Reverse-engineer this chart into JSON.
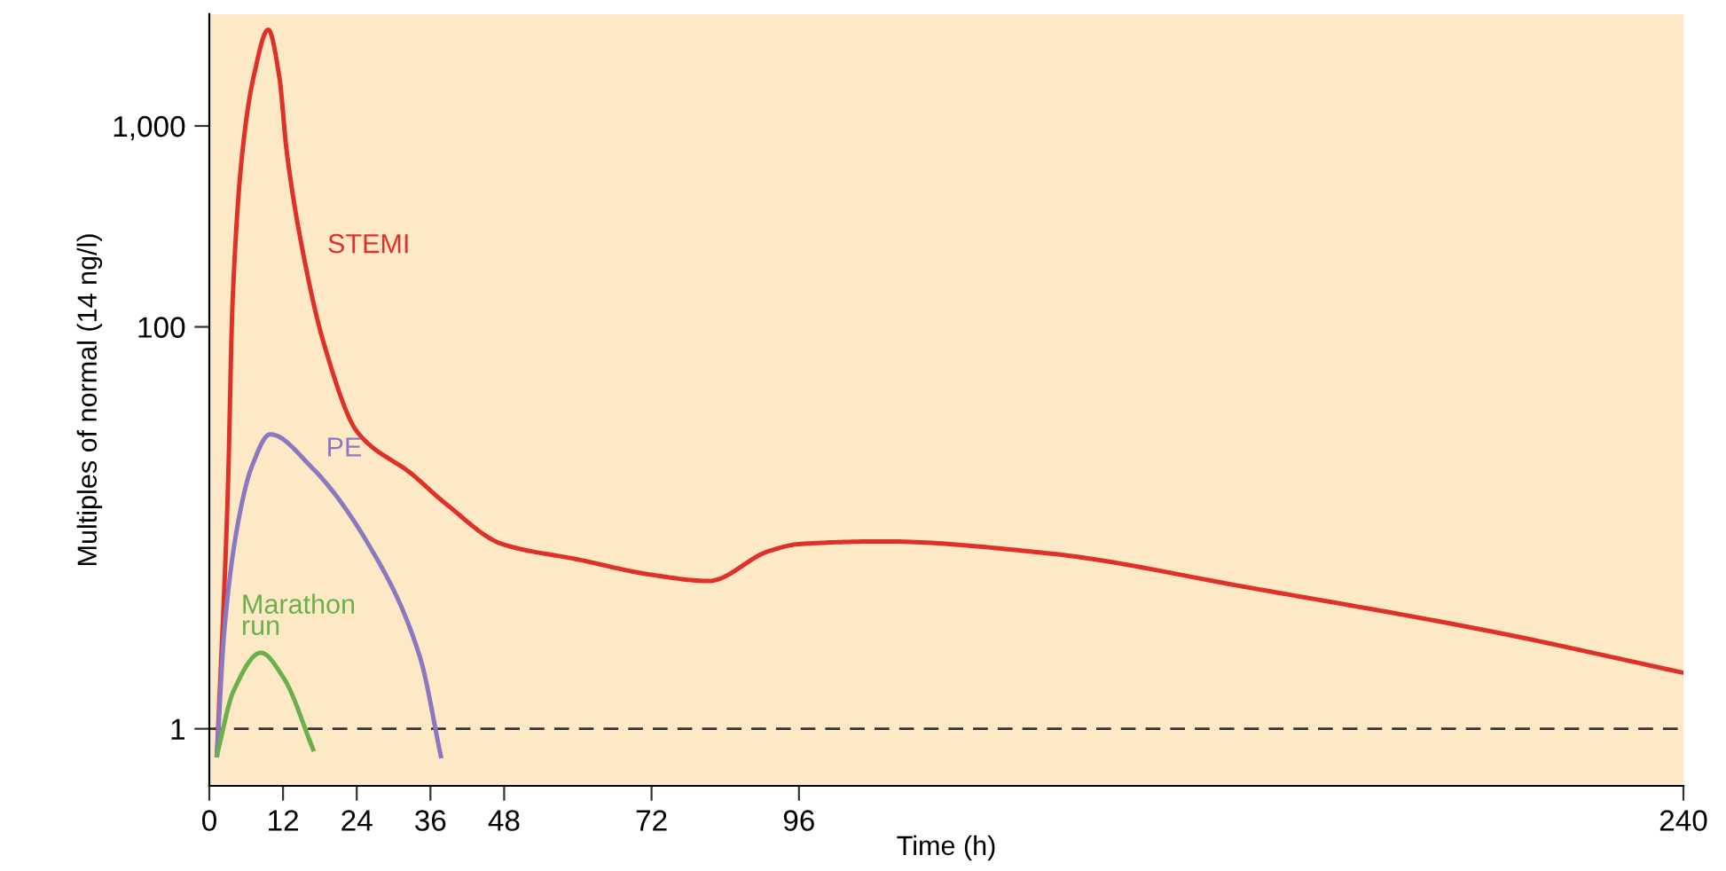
{
  "chart_data": {
    "type": "line",
    "xlabel": "Time (h)",
    "ylabel": "Multiples of normal (14 ng/l)",
    "log": "y",
    "grid": false,
    "legend": false,
    "marker": "none",
    "line_style": "solid",
    "xlim": [
      0,
      240
    ],
    "xticks": [
      0,
      12,
      24,
      36,
      48,
      72,
      96,
      240
    ],
    "ylim": [
      0.52,
      3600
    ],
    "yticks": [
      1,
      100,
      {
        "value": 1000,
        "label": "1,000"
      }
    ],
    "ref_lines": [
      {
        "axis": "y",
        "value": 1,
        "color": "#333333",
        "line_style": "dashed"
      }
    ],
    "series": [
      {
        "name": "STEMI",
        "color": "#e0302a",
        "x": [
          1.25,
          3.0,
          3.8,
          5.4,
          7.2,
          9.6,
          11.4,
          12.6,
          15.2,
          18.7,
          24.2,
          32.9,
          38.6,
          47.7,
          60,
          72,
          81.3,
          91,
          96,
          109.7,
          136,
          169.6,
          209,
          240
        ],
        "values": [
          0.74,
          14.7,
          136,
          748,
          1750,
          3010,
          1750,
          748,
          239,
          81.6,
          29.7,
          18.6,
          13.1,
          8.3,
          6.96,
          5.84,
          5.44,
          7.64,
          8.3,
          8.56,
          7.5,
          5.02,
          3.04,
          1.9
        ]
      },
      {
        "name": "PE",
        "color": "#8a78c0",
        "x": [
          1.25,
          2.45,
          4.5,
          6.9,
          9.9,
          16.6,
          26.3,
          34.3,
          37.7
        ],
        "values": [
          0.74,
          3.09,
          9.9,
          20.1,
          29.2,
          20.1,
          7.9,
          2.27,
          0.73
        ]
      },
      {
        "name": "Marathon\nrun",
        "color": "#6ab04c",
        "x": [
          1.25,
          3.9,
          8.4,
          12.1,
          16.9
        ],
        "values": [
          0.74,
          1.53,
          2.39,
          1.79,
          0.79
        ]
      }
    ]
  }
}
